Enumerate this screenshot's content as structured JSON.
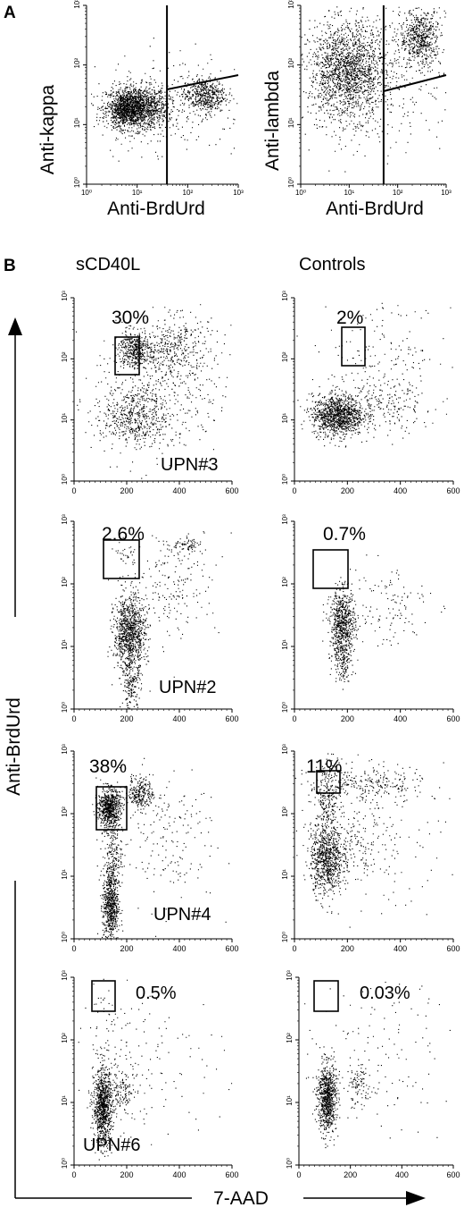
{
  "panel_a": {
    "label": "A",
    "plots": [
      {
        "id": "a1",
        "ylabel": "Anti-kappa",
        "xlabel": "Anti-BrdUrd",
        "log_ticks": [
          "10⁰",
          "10¹",
          "10²",
          "10³"
        ]
      },
      {
        "id": "a2",
        "ylabel": "Anti-lambda",
        "xlabel": "Anti-BrdUrd",
        "log_ticks": [
          "10⁰",
          "10¹",
          "10²",
          "10³"
        ]
      }
    ]
  },
  "panel_b": {
    "label": "B",
    "column_headers": [
      "sCD40L",
      "Controls"
    ],
    "y_axis_label": "Anti-BrdUrd",
    "x_axis_label": "7-AAD",
    "x_ticks": [
      "0",
      "200",
      "400",
      "600"
    ],
    "y_ticks": [
      "10⁰",
      "10¹",
      "10²",
      "10³"
    ],
    "rows": [
      {
        "sample": "UPN#3",
        "scd40l_pct": "30%",
        "control_pct": "2%"
      },
      {
        "sample": "UPN#2",
        "scd40l_pct": "2.6%",
        "control_pct": "0.7%"
      },
      {
        "sample": "UPN#4",
        "scd40l_pct": "38%",
        "control_pct": "11%"
      },
      {
        "sample": "UPN#6",
        "scd40l_pct": "0.5%",
        "control_pct": "0.03%"
      }
    ]
  },
  "chart_data": [
    {
      "type": "scatter",
      "panel": "A-left",
      "xscale": "log",
      "yscale": "log",
      "xlim": [
        1,
        1000
      ],
      "ylim": [
        1,
        1000
      ],
      "xlabel": "Anti-BrdUrd",
      "ylabel": "Anti-kappa",
      "populations": [
        {
          "x": 8,
          "y": 25,
          "density": "high"
        },
        {
          "x": 200,
          "y": 35,
          "density": "medium"
        }
      ]
    },
    {
      "type": "scatter",
      "panel": "A-right",
      "xscale": "log",
      "yscale": "log",
      "xlim": [
        1,
        1000
      ],
      "ylim": [
        1,
        1000
      ],
      "xlabel": "Anti-BrdUrd",
      "ylabel": "Anti-lambda",
      "populations": [
        {
          "x": 8,
          "y": 90,
          "density": "high"
        },
        {
          "x": 300,
          "y": 400,
          "density": "medium"
        }
      ]
    },
    {
      "type": "scatter",
      "panel": "B",
      "sample": "UPN#3",
      "condition": "sCD40L",
      "gate_percent": 30,
      "xlim": [
        0,
        600
      ],
      "ylim": [
        1,
        1000
      ]
    },
    {
      "type": "scatter",
      "panel": "B",
      "sample": "UPN#3",
      "condition": "Controls",
      "gate_percent": 2,
      "xlim": [
        0,
        600
      ],
      "ylim": [
        1,
        1000
      ]
    },
    {
      "type": "scatter",
      "panel": "B",
      "sample": "UPN#2",
      "condition": "sCD40L",
      "gate_percent": 2.6,
      "xlim": [
        0,
        600
      ],
      "ylim": [
        1,
        1000
      ]
    },
    {
      "type": "scatter",
      "panel": "B",
      "sample": "UPN#2",
      "condition": "Controls",
      "gate_percent": 0.7,
      "xlim": [
        0,
        600
      ],
      "ylim": [
        1,
        1000
      ]
    },
    {
      "type": "scatter",
      "panel": "B",
      "sample": "UPN#4",
      "condition": "sCD40L",
      "gate_percent": 38,
      "xlim": [
        0,
        600
      ],
      "ylim": [
        1,
        1000
      ]
    },
    {
      "type": "scatter",
      "panel": "B",
      "sample": "UPN#4",
      "condition": "Controls",
      "gate_percent": 11,
      "xlim": [
        0,
        600
      ],
      "ylim": [
        1,
        1000
      ]
    },
    {
      "type": "scatter",
      "panel": "B",
      "sample": "UPN#6",
      "condition": "sCD40L",
      "gate_percent": 0.5,
      "xlim": [
        0,
        600
      ],
      "ylim": [
        1,
        1000
      ]
    },
    {
      "type": "scatter",
      "panel": "B",
      "sample": "UPN#6",
      "condition": "Controls",
      "gate_percent": 0.03,
      "xlim": [
        0,
        600
      ],
      "ylim": [
        1,
        1000
      ]
    }
  ]
}
